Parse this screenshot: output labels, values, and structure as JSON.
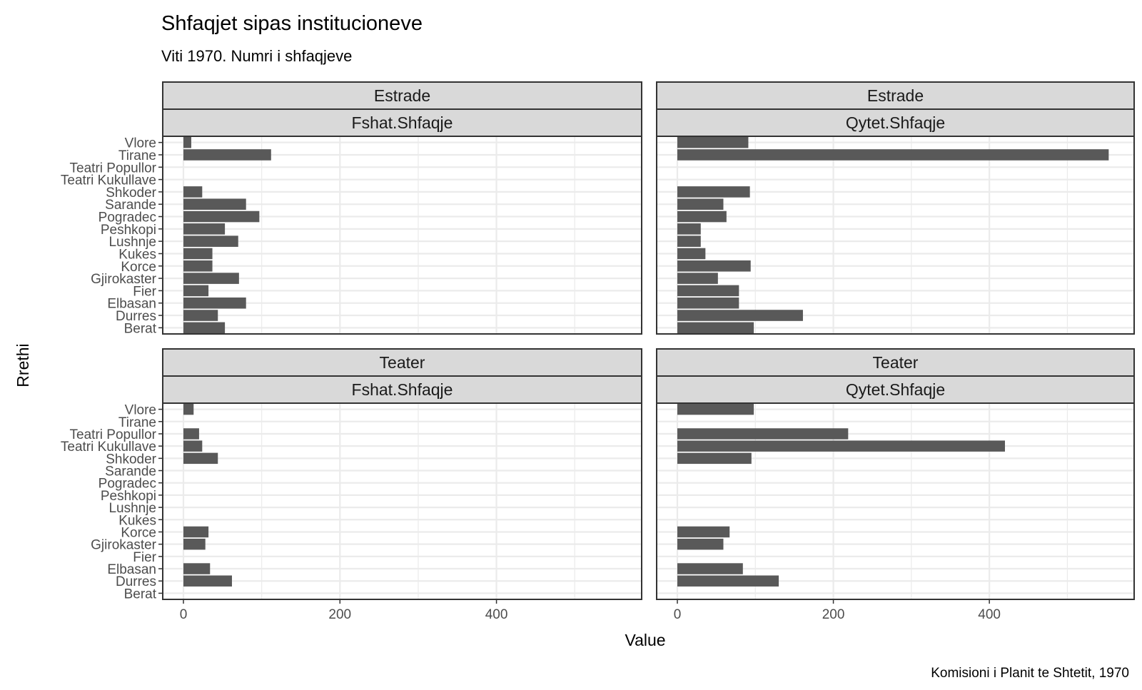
{
  "title": "Shfaqjet sipas institucioneve",
  "subtitle": "Viti 1970. Numri i shfaqjeve",
  "caption": "Komisioni i Planit te Shtetit, 1970",
  "chart_data": {
    "type": "bar",
    "orientation": "horizontal",
    "xlabel": "Value",
    "ylabel": "Rrethi",
    "xlim": [
      0,
      560
    ],
    "x_ticks": [
      0,
      200,
      400
    ],
    "grid": true,
    "bar_color": "#595959",
    "categories": [
      "Vlore",
      "Tirane",
      "Teatri Popullor",
      "Teatri Kukullave",
      "Shkoder",
      "Sarande",
      "Pogradec",
      "Peshkopi",
      "Lushnje",
      "Kukes",
      "Korce",
      "Gjirokaster",
      "Fier",
      "Elbasan",
      "Durres",
      "Berat"
    ],
    "panels": [
      {
        "strip_top": "Estrade",
        "strip_bottom": "Fshat.Shfaqje",
        "values": [
          10,
          112,
          0,
          0,
          24,
          80,
          97,
          53,
          70,
          37,
          37,
          71,
          32,
          80,
          44,
          53
        ]
      },
      {
        "strip_top": "Estrade",
        "strip_bottom": "Qytet.Shfaqje",
        "values": [
          91,
          553,
          0,
          0,
          93,
          59,
          63,
          30,
          30,
          36,
          94,
          52,
          79,
          79,
          161,
          98
        ]
      },
      {
        "strip_top": "Teater",
        "strip_bottom": "Fshat.Shfaqje",
        "values": [
          13,
          0,
          20,
          24,
          44,
          0,
          0,
          0,
          0,
          0,
          32,
          28,
          0,
          34,
          62,
          0
        ]
      },
      {
        "strip_top": "Teater",
        "strip_bottom": "Qytet.Shfaqje",
        "values": [
          98,
          0,
          219,
          420,
          95,
          0,
          0,
          0,
          0,
          0,
          67,
          59,
          0,
          84,
          130,
          0
        ]
      }
    ]
  }
}
